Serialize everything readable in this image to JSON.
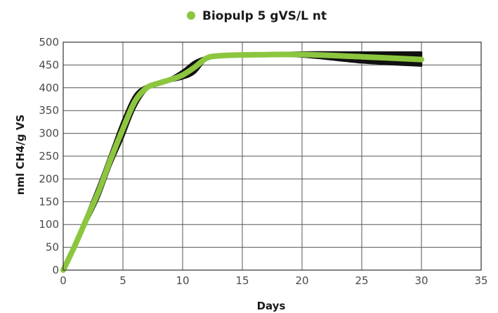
{
  "chart_data": {
    "type": "area",
    "title": "",
    "xlabel": "Days",
    "ylabel": "nml CH4/g VS",
    "xlim": [
      0,
      35
    ],
    "ylim": [
      0,
      500
    ],
    "xticks": [
      0,
      5,
      10,
      15,
      20,
      25,
      30,
      35
    ],
    "yticks": [
      0,
      50,
      100,
      150,
      200,
      250,
      300,
      350,
      400,
      450,
      500
    ],
    "grid": true,
    "legend_position": "top-center",
    "series": [
      {
        "name": "Biopulp 5 gVS/L nt",
        "color": "#8cc63f",
        "band_color": "#111111",
        "x": [
          0,
          1,
          2,
          3,
          4,
          5,
          6,
          7,
          8,
          9,
          10,
          11,
          12,
          13,
          15,
          20,
          25,
          30
        ],
        "mean": [
          0,
          55,
          115,
          175,
          245,
          310,
          370,
          400,
          410,
          418,
          428,
          445,
          465,
          470,
          472,
          473,
          468,
          462
        ],
        "upper": [
          0,
          60,
          125,
          190,
          260,
          330,
          385,
          405,
          412,
          422,
          438,
          458,
          468,
          471,
          473,
          478,
          478,
          478
        ],
        "lower": [
          0,
          50,
          105,
          160,
          230,
          290,
          355,
          395,
          408,
          414,
          420,
          432,
          462,
          469,
          471,
          468,
          455,
          448
        ]
      }
    ]
  }
}
